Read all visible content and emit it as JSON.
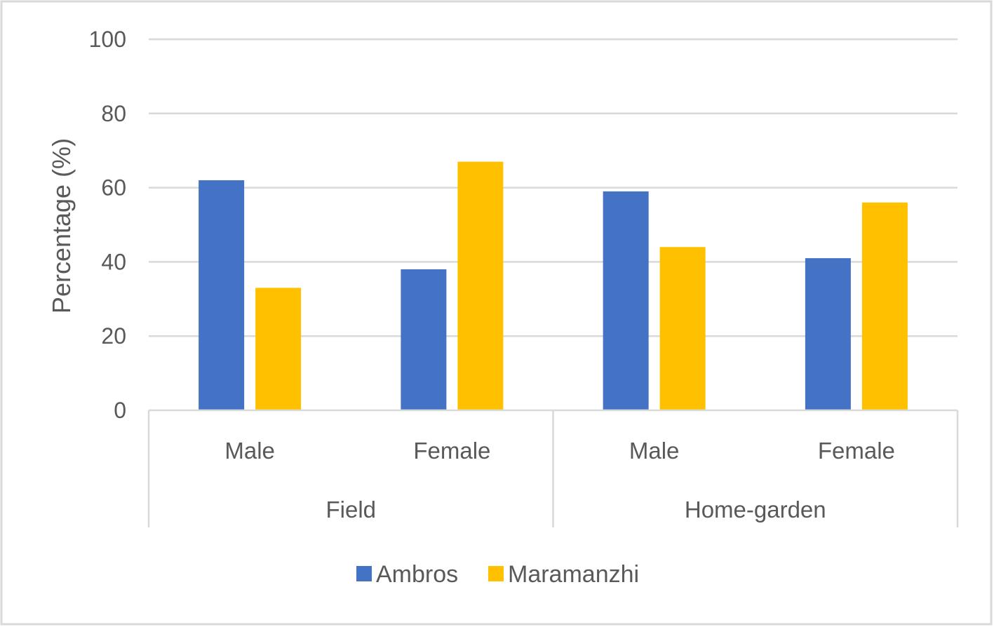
{
  "chart_data": {
    "type": "bar",
    "title": "",
    "ylabel": "Percentage (%)",
    "ylim": [
      0,
      100
    ],
    "yticks": [
      0,
      20,
      40,
      60,
      80,
      100
    ],
    "grid": true,
    "legend_position": "bottom",
    "groups": [
      {
        "label": "Field",
        "categories": [
          "Male",
          "Female"
        ]
      },
      {
        "label": "Home-garden",
        "categories": [
          "Male",
          "Female"
        ]
      }
    ],
    "categories": [
      "Male",
      "Female",
      "Male",
      "Female"
    ],
    "series": [
      {
        "name": "Ambros",
        "color": "#4472C4",
        "values": [
          62,
          38,
          59,
          41
        ]
      },
      {
        "name": "Maramanzhi",
        "color": "#FFC000",
        "values": [
          33,
          67,
          44,
          56
        ]
      }
    ]
  }
}
